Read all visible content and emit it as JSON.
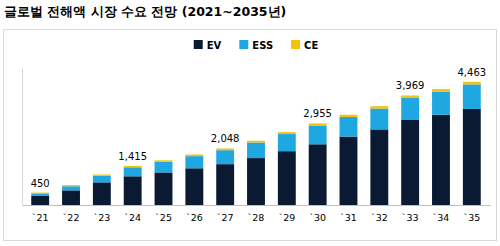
{
  "chart_data": {
    "type": "bar",
    "title": "글로벌 전해액 시장 수요 전망 (2021~2035년)",
    "categories": [
      "`21",
      "`22",
      "`23",
      "`24",
      "`25",
      "`26",
      "`27",
      "`28",
      "`29",
      "`30",
      "`31",
      "`32",
      "`33",
      "`34",
      "`35"
    ],
    "series": [
      {
        "name": "EV",
        "color": "#0b1a33",
        "values": [
          330,
          530,
          820,
          1040,
          1180,
          1330,
          1480,
          1700,
          1950,
          2200,
          2480,
          2740,
          3080,
          3270,
          3480
        ]
      },
      {
        "name": "ESS",
        "color": "#1ea7e1",
        "values": [
          90,
          150,
          240,
          325,
          385,
          440,
          505,
          565,
          620,
          680,
          710,
          755,
          800,
          840,
          890
        ]
      },
      {
        "name": "CE",
        "color": "#f4c20d",
        "values": [
          30,
          40,
          45,
          50,
          55,
          60,
          63,
          65,
          70,
          75,
          80,
          85,
          89,
          90,
          93
        ]
      }
    ],
    "stacked": true,
    "legend": "top",
    "tick_labels": "x",
    "ylim": [
      0,
      5000
    ],
    "yticks": [],
    "annotations": [
      {
        "x": "`21",
        "value": 450,
        "label": "450"
      },
      {
        "x": "`24",
        "value": 1415,
        "label": "1,415"
      },
      {
        "x": "`27",
        "value": 2048,
        "label": "2,048"
      },
      {
        "x": "`30",
        "value": 2955,
        "label": "2,955"
      },
      {
        "x": "`33",
        "value": 3969,
        "label": "3,969"
      },
      {
        "x": "`35",
        "value": 4463,
        "label": "4,463"
      }
    ]
  }
}
